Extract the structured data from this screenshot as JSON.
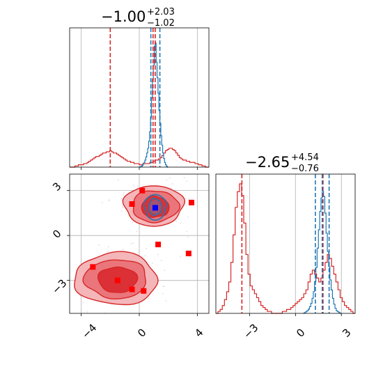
{
  "chart_data": {
    "type": "corner",
    "parameters": [
      {
        "title": {
          "value": "−1.00",
          "upper": "+2.03",
          "lower": "−1.02"
        },
        "xticks": [
          "−4",
          "0",
          "4"
        ],
        "xlim": [
          -4.8,
          4.8
        ]
      },
      {
        "title": {
          "value": "−2.65",
          "upper": "+4.54",
          "lower": "−0.76"
        },
        "yticks": [
          "−3",
          "0",
          "3"
        ],
        "xticks": [
          "−3",
          "0",
          "3"
        ],
        "xlim": [
          -5.2,
          3.9
        ]
      }
    ],
    "grid": true,
    "colors": {
      "red": "#d62728",
      "blue": "#1f77b4",
      "marker_red": "#ff0000",
      "marker_blue": "#0000ff"
    },
    "panel_1d_x": {
      "red_dashed_x": [
        -2.0,
        0.95,
        1.1
      ],
      "blue_dashed_x": [
        0.8,
        1.42
      ],
      "red_hist": {
        "bin_edges": [
          -4.8,
          4.8
        ],
        "counts": [
          0,
          0,
          0,
          0.5,
          0.5,
          1,
          1,
          1,
          1.5,
          1.5,
          2,
          2.5,
          3,
          3.5,
          4,
          4.5,
          4.5,
          5,
          5.5,
          6,
          6,
          6.5,
          6.5,
          7,
          6.5,
          6,
          6,
          5.5,
          5,
          4.5,
          4,
          3.5,
          3,
          2.5,
          2.5,
          2,
          2,
          1.5,
          1.5,
          1.5,
          1,
          1,
          1.5,
          1.5,
          1.5,
          1.5,
          2,
          2,
          2.5,
          3,
          3,
          3.5,
          4,
          5,
          6,
          7,
          7.5,
          8,
          8,
          7.5,
          7,
          6,
          5,
          4,
          3.5,
          3,
          3,
          2.5,
          2.5,
          2,
          2,
          2,
          1.5,
          1.5,
          1,
          1,
          0.5,
          0.5,
          0,
          0
        ]
      },
      "blue_hist": {
        "bin_edges": [
          0.0,
          2.0
        ],
        "counts": [
          0,
          0.5,
          1,
          2,
          4,
          6,
          9,
          13,
          18,
          24,
          33,
          45,
          63,
          88,
          112,
          130,
          154,
          158,
          134,
          114,
          94,
          72,
          56,
          40,
          28,
          18,
          11,
          6,
          3,
          1,
          0
        ]
      }
    },
    "panel_1d_y": {
      "red_dashed_x": [
        -3.5,
        1.8
      ],
      "blue_dashed_x": [
        1.3,
        1.75,
        2.2
      ],
      "red_hist": {
        "bin_edges": [
          -5.2,
          3.9
        ],
        "counts": [
          0,
          0.5,
          1,
          2,
          3.5,
          5.5,
          8,
          13,
          20,
          27,
          31,
          33,
          30,
          23,
          15,
          10,
          7,
          6,
          5,
          4,
          3,
          2,
          1.5,
          1,
          0.5,
          0.5,
          0,
          0,
          0,
          0,
          0,
          0.5,
          0.5,
          1,
          1,
          1.5,
          2,
          2.5,
          3,
          3.5,
          4,
          5,
          6,
          8,
          10,
          11,
          10,
          9,
          8,
          9,
          11,
          13,
          15,
          14,
          12,
          10,
          8,
          6,
          4,
          3,
          2,
          1.5,
          1,
          0.5,
          0
        ]
      },
      "blue_hist": {
        "bin_edges": [
          0.5,
          3.0
        ],
        "counts": [
          0,
          1,
          2,
          3,
          5,
          8,
          12,
          18,
          26,
          38,
          55,
          78,
          100,
          122,
          138,
          146,
          140,
          120,
          96,
          74,
          56,
          40,
          28,
          18,
          11,
          6,
          3,
          2,
          1,
          0
        ]
      }
    },
    "panel_2d": {
      "red_markers": [
        {
          "x": 0.2,
          "y": 3.0
        },
        {
          "x": -0.5,
          "y": 2.1
        },
        {
          "x": 3.6,
          "y": 2.2
        },
        {
          "x": 1.3,
          "y": -0.6
        },
        {
          "x": 3.4,
          "y": -1.2
        },
        {
          "x": -3.2,
          "y": -2.1
        },
        {
          "x": -1.5,
          "y": -3.0
        },
        {
          "x": -0.5,
          "y": -3.6
        },
        {
          "x": 0.3,
          "y": -3.7
        }
      ],
      "blue_marker": {
        "x": 1.1,
        "y": 1.85
      },
      "red_contours": [
        {
          "cx": 1.0,
          "cy": 2.0,
          "rx": 2.05,
          "ry": 1.35,
          "level": 3
        },
        {
          "cx": 1.1,
          "cy": 1.95,
          "rx": 1.6,
          "ry": 1.05,
          "level": 2
        },
        {
          "cx": 1.1,
          "cy": 1.9,
          "rx": 0.95,
          "ry": 0.7,
          "level": 1
        },
        {
          "cx": -1.6,
          "cy": -2.9,
          "rx": 2.85,
          "ry": 1.75,
          "level": 3
        },
        {
          "cx": -1.6,
          "cy": -2.9,
          "rx": 2.15,
          "ry": 1.3,
          "level": 2
        },
        {
          "cx": -1.5,
          "cy": -2.95,
          "rx": 1.35,
          "ry": 0.85,
          "level": 1
        }
      ],
      "blue_contours": [
        {
          "cx": 1.1,
          "cy": 1.9,
          "rx": 0.75,
          "ry": 0.85
        },
        {
          "cx": 1.1,
          "cy": 1.9,
          "rx": 0.45,
          "ry": 0.55
        }
      ]
    }
  }
}
